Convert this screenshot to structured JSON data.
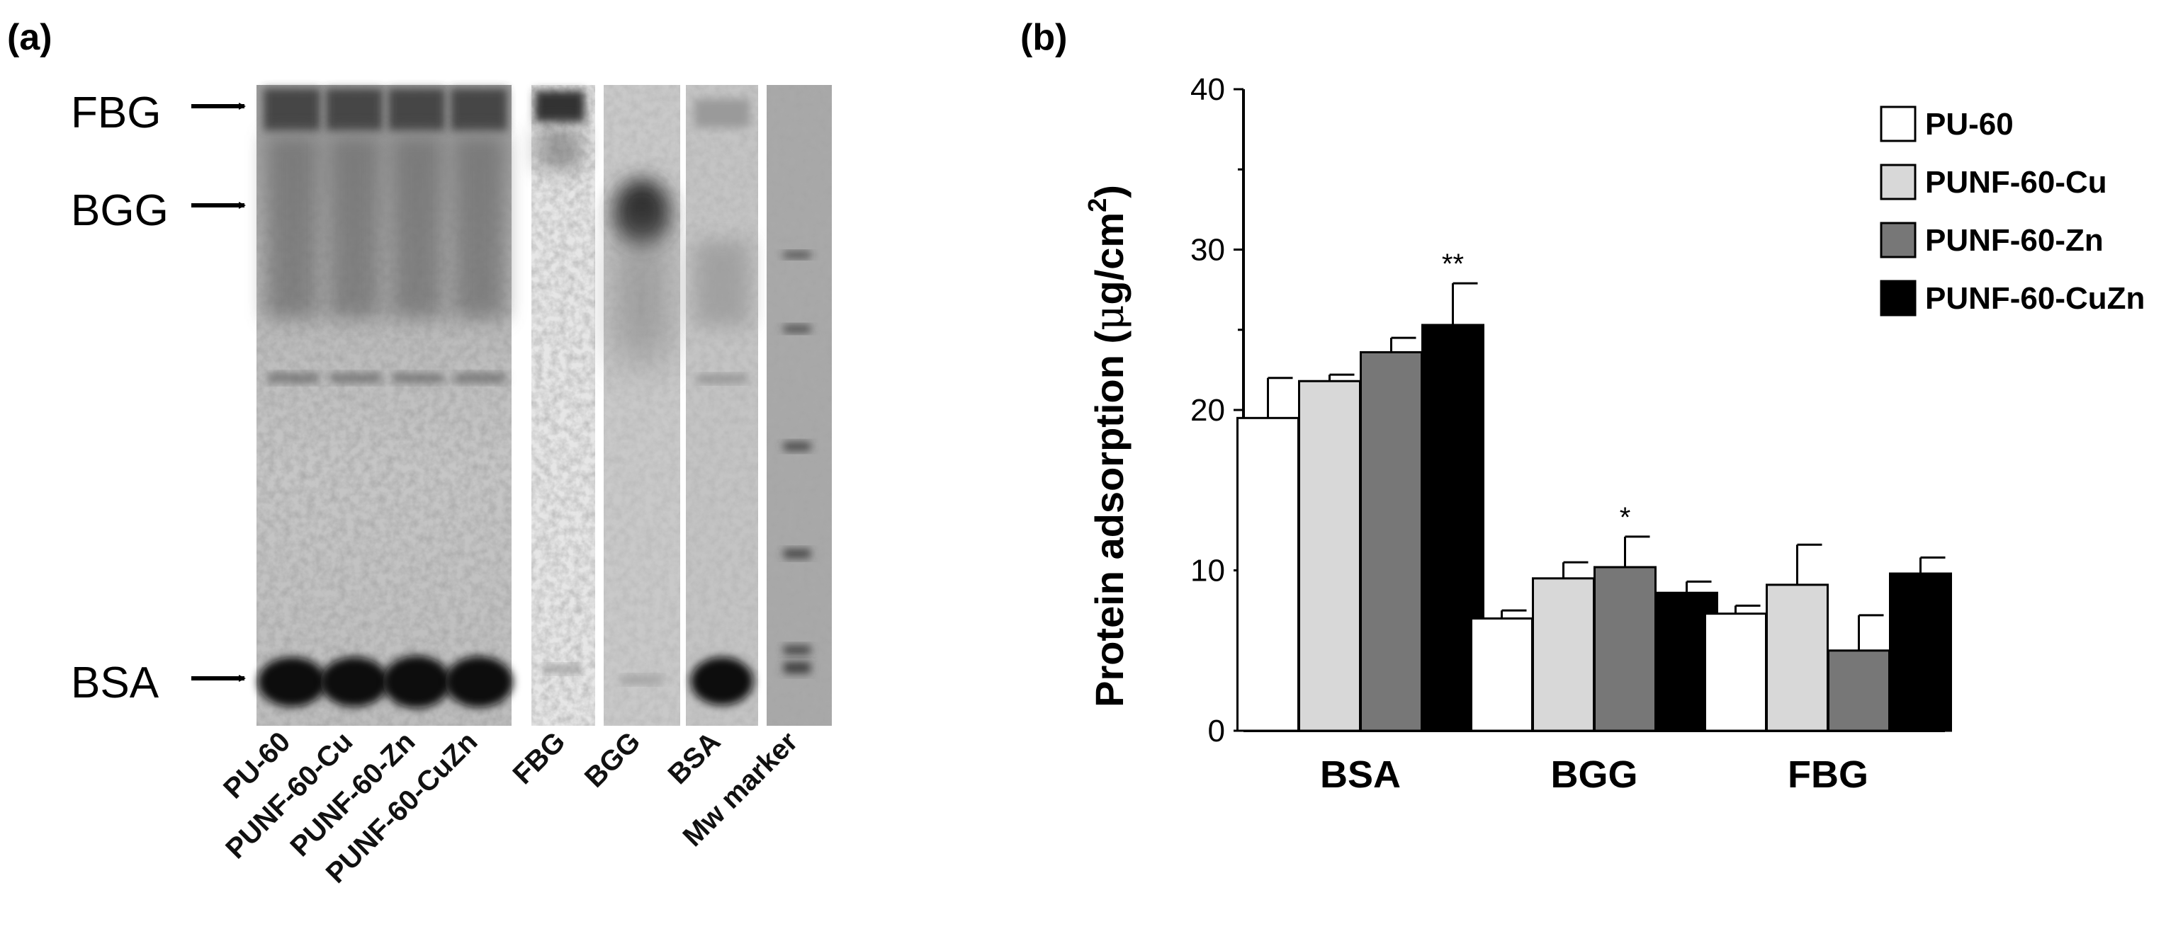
{
  "panel_a": {
    "label": "(a)",
    "band_labels": [
      "FBG",
      "BGG",
      "BSA"
    ],
    "lane_labels": [
      "PU-60",
      "PUNF-60-Cu",
      "PUNF-60-Zn",
      "PUNF-60-CuZn",
      "FBG",
      "BGG",
      "BSA",
      "Mw marker"
    ]
  },
  "chart_data": {
    "type": "bar",
    "panel_label": "(b)",
    "categories": [
      "BSA",
      "BGG",
      "FBG"
    ],
    "series": [
      {
        "name": "PU-60",
        "color": "#ffffff",
        "values": [
          19.5,
          7.0,
          7.3
        ],
        "errors": [
          2.5,
          0.5,
          0.5
        ]
      },
      {
        "name": "PUNF-60-Cu",
        "color": "#d8d8d8",
        "values": [
          21.8,
          9.5,
          9.1
        ],
        "errors": [
          0.4,
          1.0,
          2.5
        ]
      },
      {
        "name": "PUNF-60-Zn",
        "color": "#777777",
        "values": [
          23.6,
          10.2,
          5.0
        ],
        "errors": [
          0.9,
          1.9,
          2.2
        ]
      },
      {
        "name": "PUNF-60-CuZn",
        "color": "#000000",
        "values": [
          25.3,
          8.6,
          9.8
        ],
        "errors": [
          2.6,
          0.7,
          1.0
        ]
      }
    ],
    "annotations": [
      {
        "text": "**",
        "category": "BSA",
        "series": "PUNF-60-CuZn"
      },
      {
        "text": "*",
        "category": "BGG",
        "series": "PUNF-60-Zn"
      }
    ],
    "ylabel": "Protein adsorption (μg/cm²)",
    "ylabel_main": "Protein adsorption (",
    "ylabel_unit_mu": "μ",
    "ylabel_unit_rest": "g/cm",
    "ylabel_sup": "2",
    "ylabel_close": ")",
    "xlabel": "",
    "ylim": [
      0,
      40
    ],
    "yticks": [
      0,
      10,
      20,
      30,
      40
    ],
    "grid": false,
    "legend_position": "top-right"
  }
}
